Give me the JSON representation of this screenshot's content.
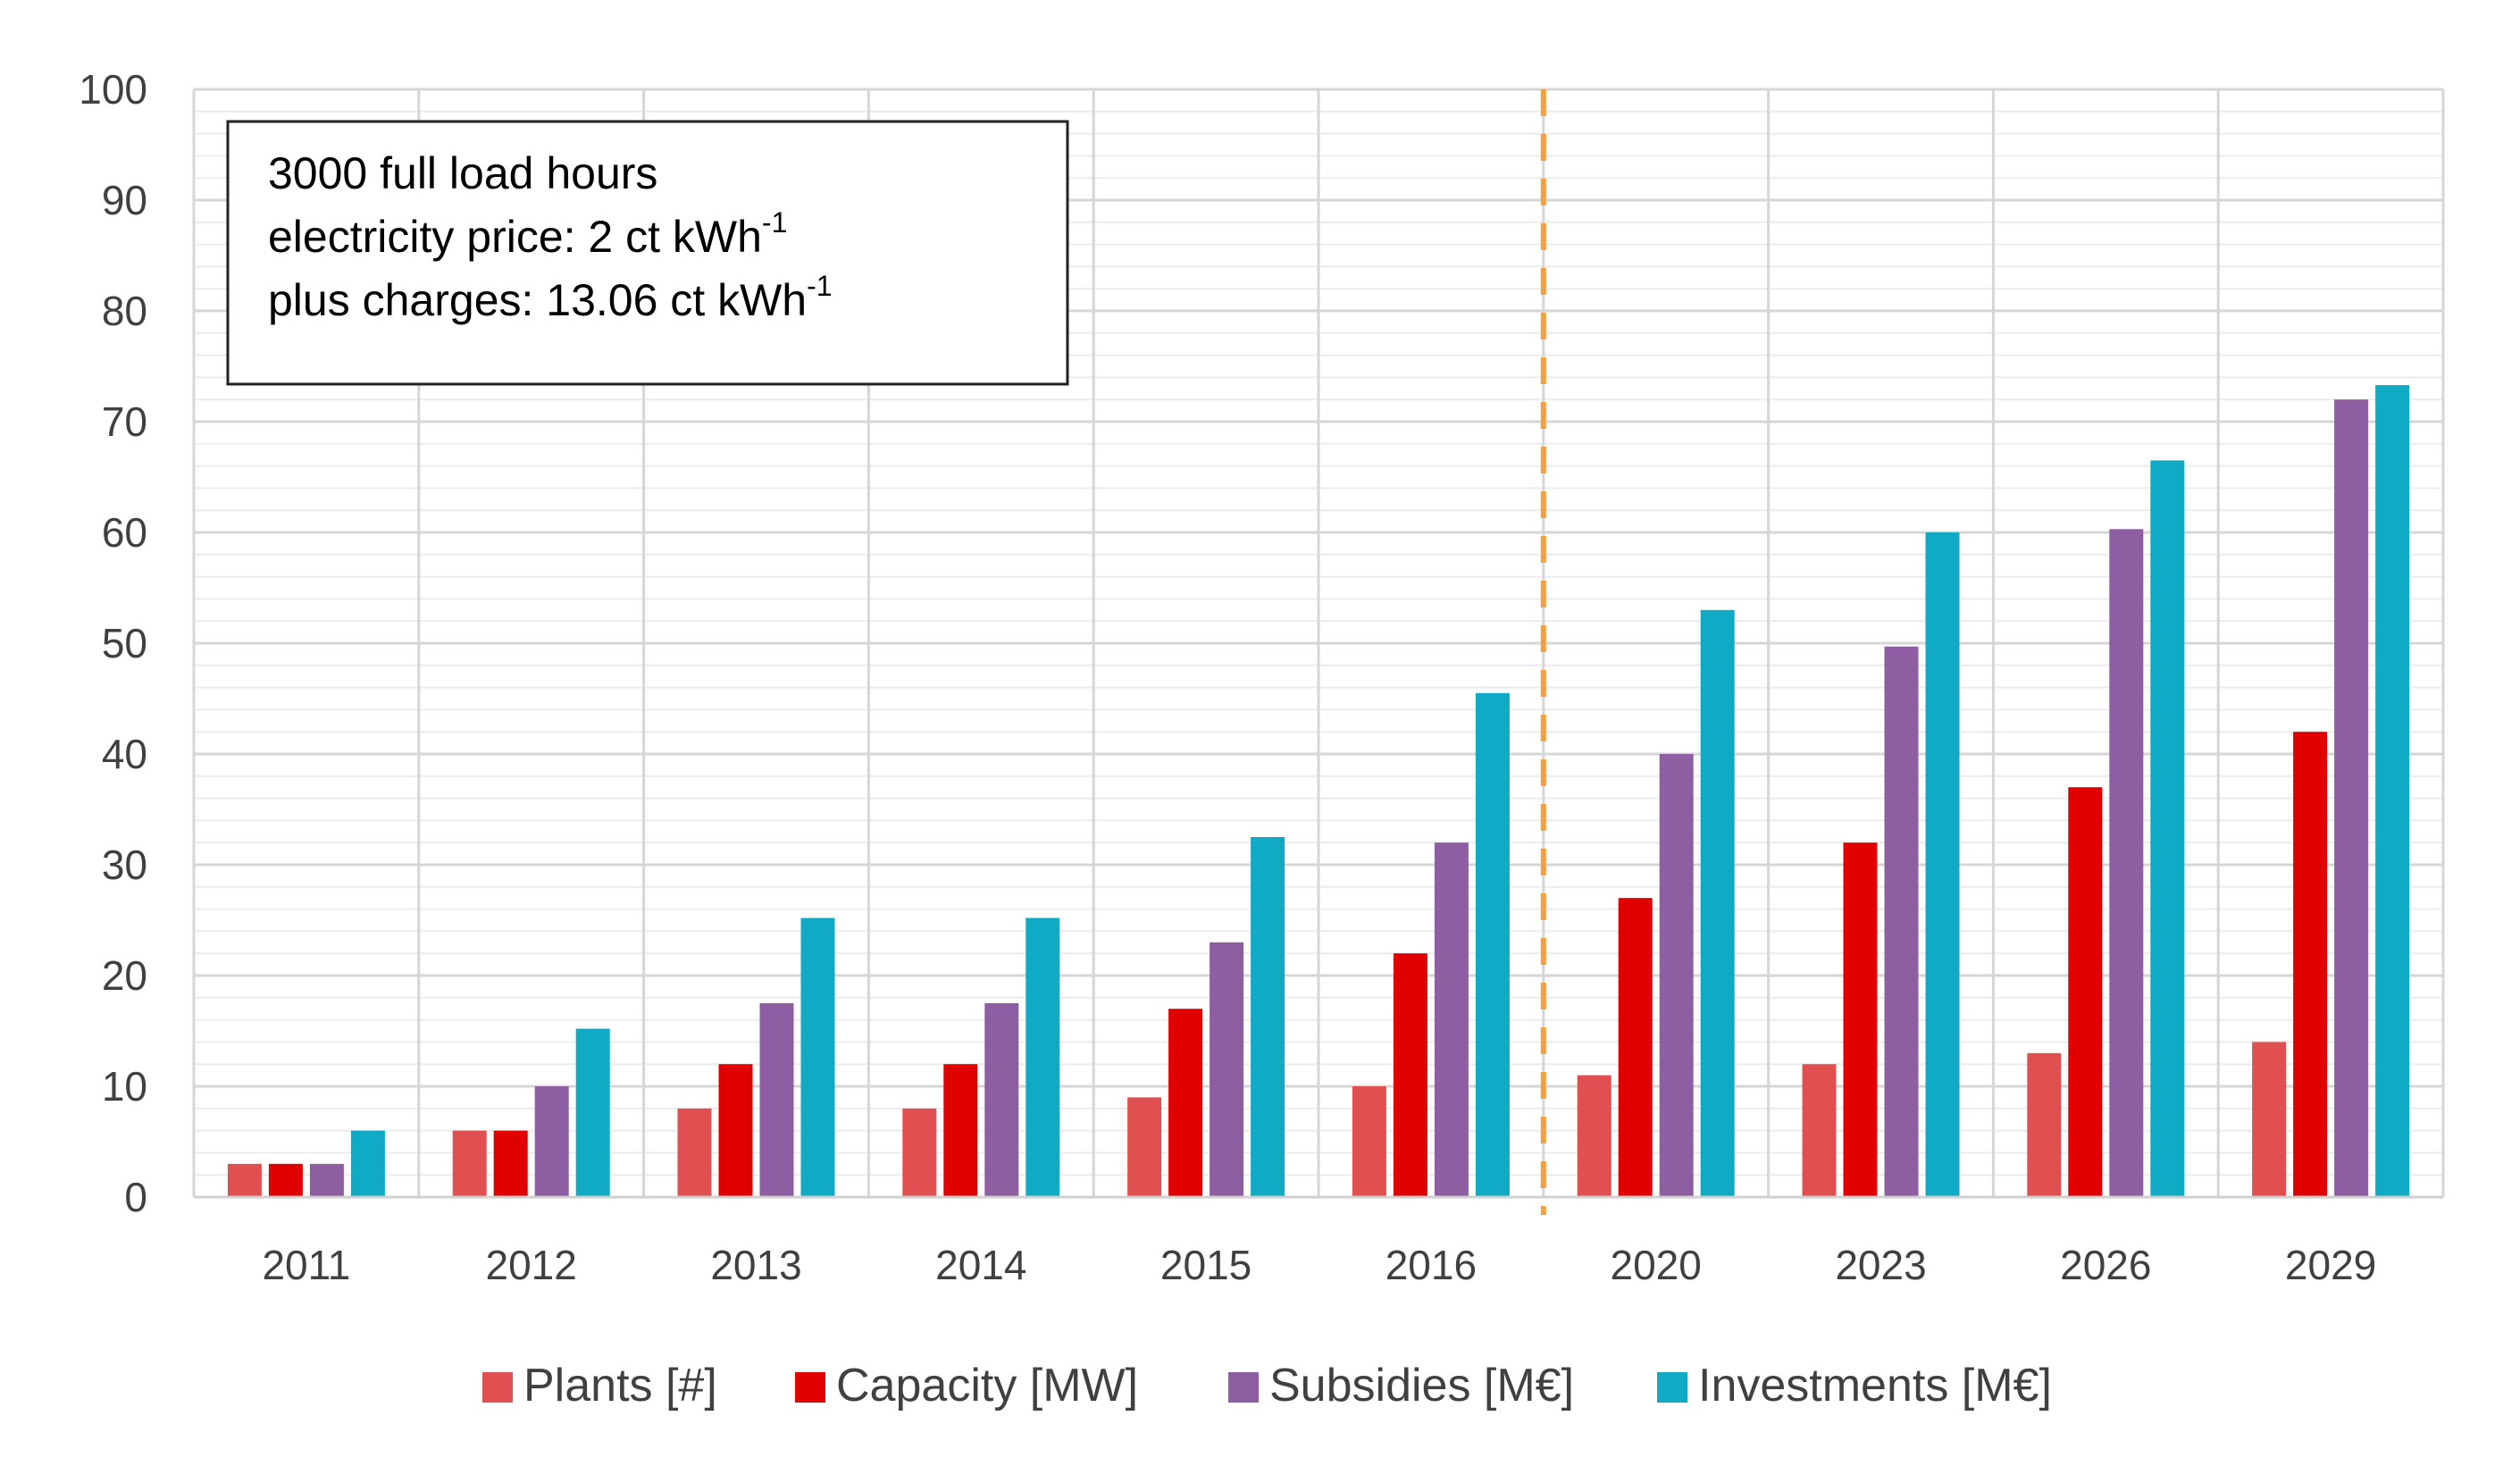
{
  "chart_data": {
    "type": "bar",
    "categories": [
      "2011",
      "2012",
      "2013",
      "2014",
      "2015",
      "2016",
      "2020",
      "2023",
      "2026",
      "2029"
    ],
    "series": [
      {
        "name": "Plants [#]",
        "color": "#e05050",
        "values": [
          3,
          6,
          8,
          8,
          9,
          10,
          11,
          12,
          13,
          14
        ]
      },
      {
        "name": "Capacity [MW]",
        "color": "#e00000",
        "values": [
          3,
          6,
          12,
          12,
          17,
          22,
          27,
          32,
          37,
          42
        ]
      },
      {
        "name": "Subsidies [M€]",
        "color": "#8e5ea2",
        "values": [
          3,
          10,
          17.5,
          17.5,
          23,
          32,
          40,
          49.7,
          60.3,
          72
        ]
      },
      {
        "name": "Investments [M€]",
        "color": "#10aac4",
        "values": [
          6,
          15.2,
          25.2,
          25.2,
          32.5,
          45.5,
          53,
          60,
          66.5,
          73.3
        ]
      }
    ],
    "ylim": [
      0,
      100
    ],
    "yticks": [
      "0",
      "10",
      "20",
      "30",
      "40",
      "50",
      "60",
      "70",
      "80",
      "90",
      "100"
    ],
    "title": "",
    "xlabel": "",
    "ylabel": "",
    "grid": true,
    "legend": "bottom",
    "separator": {
      "between": [
        "2016",
        "2020"
      ],
      "style": "dashed",
      "color": "#f5a040"
    },
    "annotation": {
      "line1": "3000 full load hours",
      "line2_text": "electricity price: 2 ct kWh",
      "line2_sup": "-1",
      "line3_text": "plus charges: 13.06 ct kWh",
      "line3_sup": "-1"
    }
  }
}
